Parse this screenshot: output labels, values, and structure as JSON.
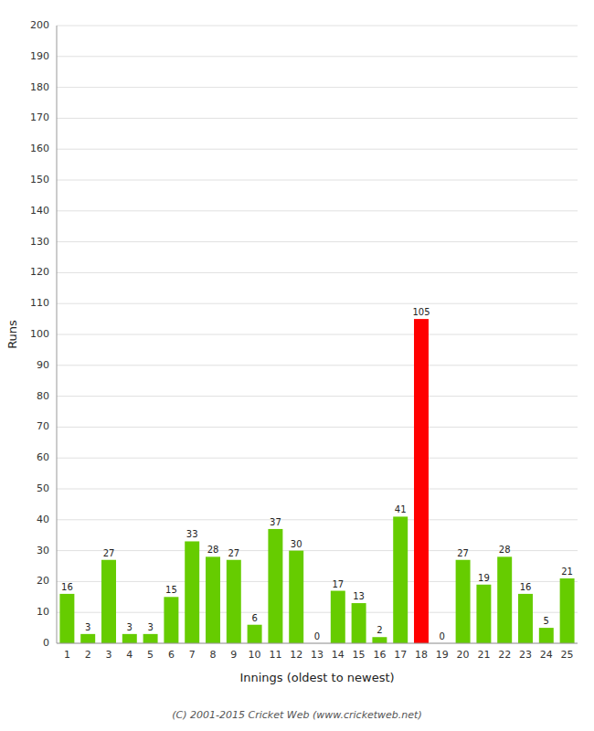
{
  "chart_data": {
    "type": "bar",
    "xlabel": "Innings (oldest to newest)",
    "ylabel": "Runs",
    "categories": [
      "1",
      "2",
      "3",
      "4",
      "5",
      "6",
      "7",
      "8",
      "9",
      "10",
      "11",
      "12",
      "13",
      "14",
      "15",
      "16",
      "17",
      "18",
      "19",
      "20",
      "21",
      "22",
      "23",
      "24",
      "25"
    ],
    "values": [
      16,
      3,
      27,
      3,
      3,
      15,
      33,
      28,
      27,
      6,
      37,
      30,
      0,
      17,
      13,
      2,
      41,
      105,
      0,
      27,
      19,
      28,
      16,
      5,
      21
    ],
    "colors": [
      "#66cc00",
      "#66cc00",
      "#66cc00",
      "#66cc00",
      "#66cc00",
      "#66cc00",
      "#66cc00",
      "#66cc00",
      "#66cc00",
      "#66cc00",
      "#66cc00",
      "#66cc00",
      "#66cc00",
      "#66cc00",
      "#66cc00",
      "#66cc00",
      "#66cc00",
      "#ff0000",
      "#66cc00",
      "#66cc00",
      "#66cc00",
      "#66cc00",
      "#66cc00",
      "#66cc00",
      "#66cc00"
    ],
    "ylim": [
      0,
      200
    ],
    "yticks": [
      0,
      10,
      20,
      30,
      40,
      50,
      60,
      70,
      80,
      90,
      100,
      110,
      120,
      130,
      140,
      150,
      160,
      170,
      180,
      190,
      200
    ],
    "grid": true,
    "data_labels": true,
    "annotations": [
      "(C) 2001-2015 Cricket Web (www.cricketweb.net)"
    ]
  }
}
